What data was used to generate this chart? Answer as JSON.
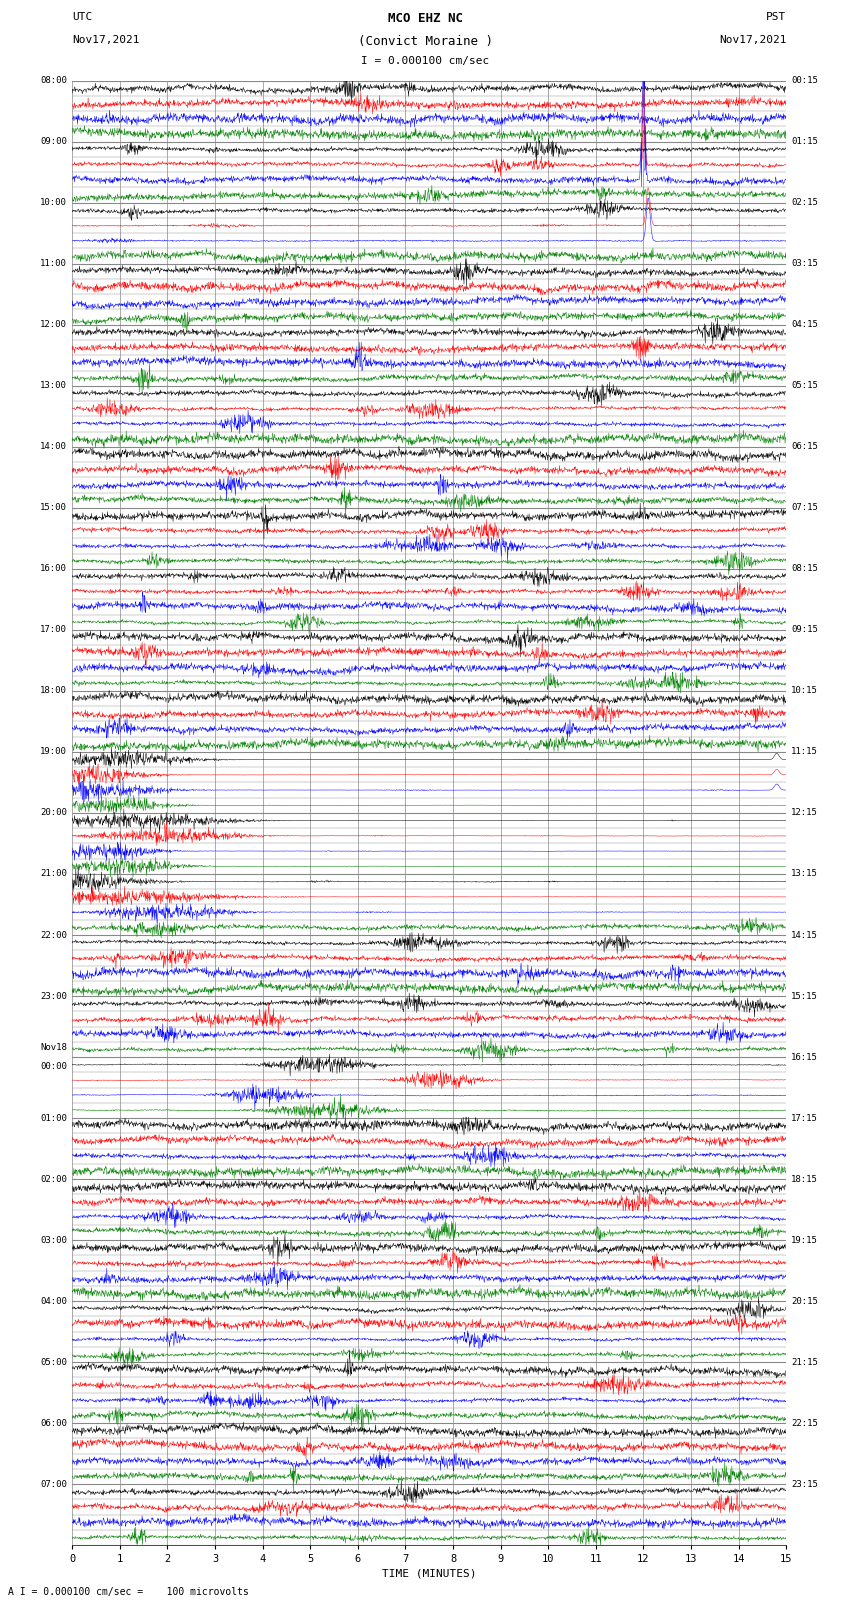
{
  "title_line1": "MCO EHZ NC",
  "title_line2": "(Convict Moraine )",
  "scale_label": "I = 0.000100 cm/sec",
  "bottom_label": "A I = 0.000100 cm/sec =    100 microvolts",
  "xlabel": "TIME (MINUTES)",
  "left_header_line1": "UTC",
  "left_header_line2": "Nov17,2021",
  "right_header_line1": "PST",
  "right_header_line2": "Nov17,2021",
  "colors": [
    "black",
    "red",
    "blue",
    "green"
  ],
  "utc_hour_labels": [
    "08:00",
    "09:00",
    "10:00",
    "11:00",
    "12:00",
    "13:00",
    "14:00",
    "15:00",
    "16:00",
    "17:00",
    "18:00",
    "19:00",
    "20:00",
    "21:00",
    "22:00",
    "23:00",
    "00:00",
    "01:00",
    "02:00",
    "03:00",
    "04:00",
    "05:00",
    "06:00",
    "07:00"
  ],
  "nov18_idx": 16,
  "pst_hour_labels": [
    "00:15",
    "01:15",
    "02:15",
    "03:15",
    "04:15",
    "05:15",
    "06:15",
    "07:15",
    "08:15",
    "09:15",
    "10:15",
    "11:15",
    "12:15",
    "13:15",
    "14:15",
    "15:15",
    "16:15",
    "17:15",
    "18:15",
    "19:15",
    "20:15",
    "21:15",
    "22:15",
    "23:15"
  ],
  "bg_color": "#ffffff",
  "grid_color": "#888888",
  "seed": 42,
  "n_hours": 24,
  "traces_per_hour": 4,
  "fig_width": 8.5,
  "fig_height": 16.13,
  "dpi": 100,
  "xmin": 0,
  "xmax": 15,
  "xticks": [
    0,
    1,
    2,
    3,
    4,
    5,
    6,
    7,
    8,
    9,
    10,
    11,
    12,
    13,
    14,
    15
  ],
  "n_points": 1800
}
